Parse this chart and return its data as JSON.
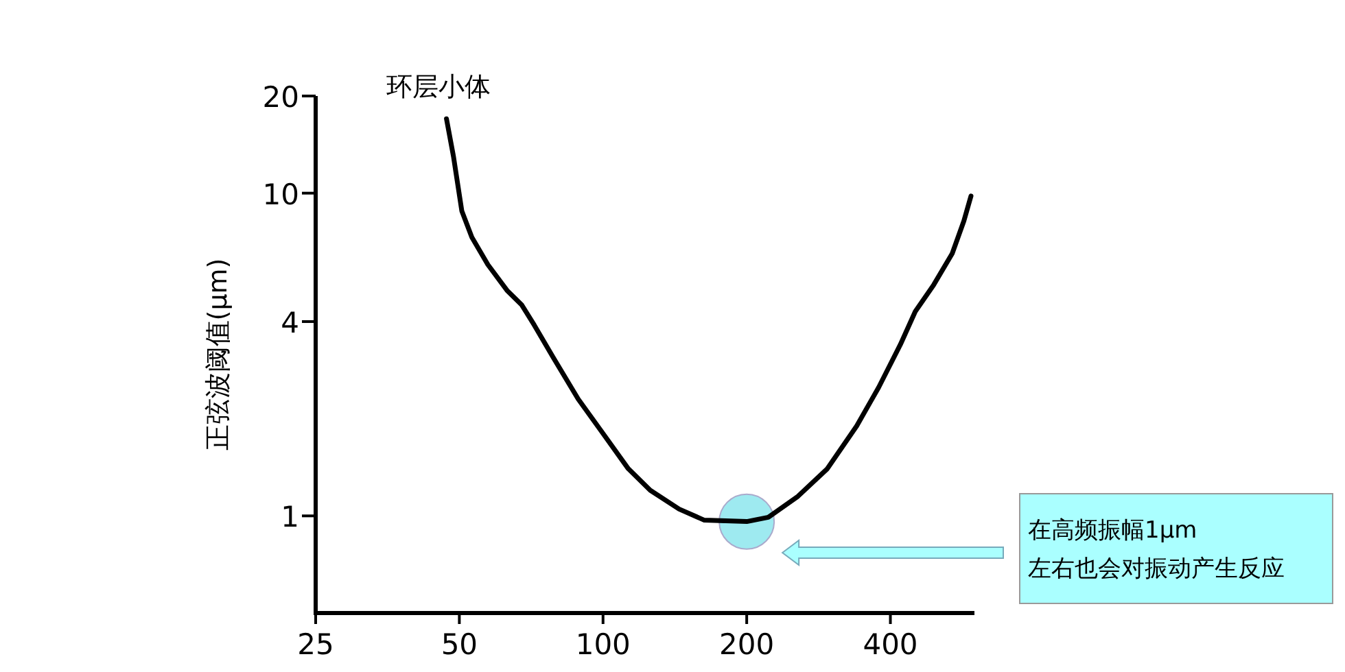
{
  "chart_data": {
    "type": "line",
    "ylabel": "正弦波阈值(μm)",
    "log": "xy",
    "xlim": [
      25,
      600
    ],
    "ylim": [
      0.5,
      20
    ],
    "xticks": [
      25,
      50,
      100,
      200,
      400
    ],
    "yticks": [
      1,
      4,
      10,
      20
    ],
    "grid": false,
    "marker": "none",
    "line_style": "solid",
    "series": [
      {
        "name": "环层小体",
        "color": "#000000",
        "x": [
          47,
          48.6,
          50.6,
          53.1,
          57.4,
          62.9,
          67.6,
          71.8,
          78.6,
          88.7,
          100,
          113,
          125.6,
          144.3,
          163,
          200,
          222,
          256,
          295,
          340,
          378,
          420,
          451,
          493,
          539,
          570,
          590
        ],
        "values": [
          17,
          13,
          8.8,
          7.3,
          6,
          5,
          4.5,
          3.9,
          3.1,
          2.3,
          1.8,
          1.4,
          1.2,
          1.05,
          0.97,
          0.96,
          0.99,
          1.15,
          1.4,
          1.9,
          2.5,
          3.4,
          4.3,
          5.2,
          6.5,
          8.2,
          9.8
        ]
      }
    ],
    "annotations": [
      "在高频振幅1μm",
      "左右也会对振动产生反应"
    ]
  }
}
